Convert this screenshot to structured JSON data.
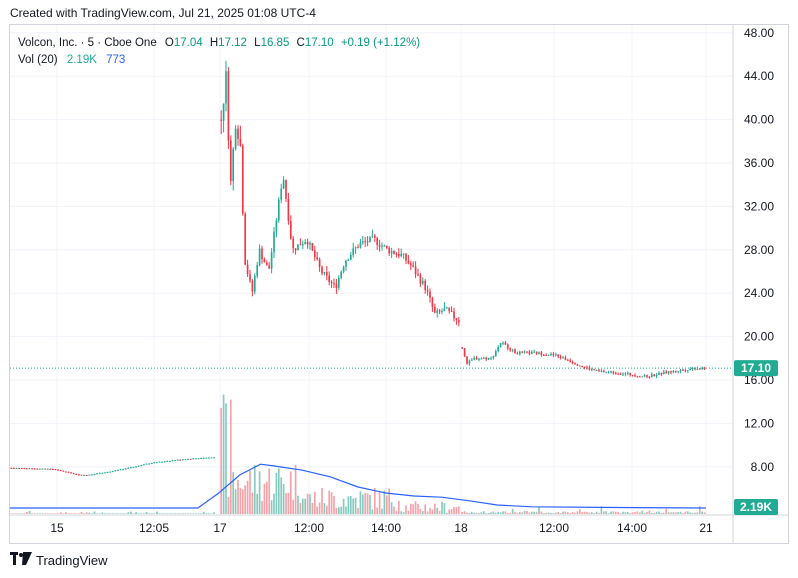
{
  "caption": "Created with TradingView.com, Jul 21, 2025 01:08 UTC-4",
  "footer": {
    "brand": "TradingView",
    "logo_icon": "tradingview-logo-icon"
  },
  "legend": {
    "symbol": "Volcon, Inc. · 5 · Cboe One",
    "o_label": "O",
    "o_value": "17.04",
    "h_label": "H",
    "h_value": "17.12",
    "l_label": "L",
    "l_value": "16.85",
    "c_label": "C",
    "c_value": "17.10",
    "change": "+0.19 (+1.12%)",
    "vol_label": "Vol (20)",
    "vol_value": "2.19K",
    "vol_ma_value": "773"
  },
  "colors": {
    "up": "#22ab94",
    "down": "#f23645",
    "vol_up": "#86cbbf",
    "vol_down": "#f5a3a9",
    "ma": "#2962ff"
  },
  "chart_data": {
    "type": "candlestick",
    "interval_minutes": 5,
    "price_axis": {
      "ticks": [
        16,
        20,
        24,
        28,
        32,
        36,
        40,
        44,
        48
      ],
      "range": [
        12,
        48
      ],
      "last_price_label": "17.10"
    },
    "volume_axis": {
      "last_volume_label": "2.19K",
      "extra_ticks": [
        8,
        12
      ]
    },
    "x_ticks": [
      "15",
      "12:05",
      "17",
      "12:00",
      "14:00",
      "18",
      "12:00",
      "14:00",
      "21"
    ],
    "sessions": [
      {
        "date": "Jul 15",
        "price_path": [
          [
            0,
            7.9
          ],
          [
            0.2,
            7.8
          ],
          [
            0.35,
            7.2
          ],
          [
            0.5,
            7.6
          ],
          [
            0.7,
            8.4
          ],
          [
            0.85,
            8.7
          ],
          [
            1,
            8.9
          ]
        ]
      },
      {
        "date": "Jul 17",
        "price_path": [
          [
            0,
            40
          ],
          [
            0.02,
            44
          ],
          [
            0.04,
            34
          ],
          [
            0.06,
            40
          ],
          [
            0.08,
            38
          ],
          [
            0.1,
            27
          ],
          [
            0.13,
            24
          ],
          [
            0.16,
            28
          ],
          [
            0.2,
            26
          ],
          [
            0.26,
            35
          ],
          [
            0.3,
            28
          ],
          [
            0.36,
            29
          ],
          [
            0.42,
            26
          ],
          [
            0.48,
            24.5
          ],
          [
            0.52,
            27
          ],
          [
            0.58,
            28.5
          ],
          [
            0.64,
            29
          ],
          [
            0.7,
            28
          ],
          [
            0.76,
            27.5
          ],
          [
            0.8,
            26.5
          ],
          [
            0.86,
            24.5
          ],
          [
            0.9,
            22
          ],
          [
            0.94,
            22.5
          ],
          [
            1,
            21.5
          ]
        ]
      },
      {
        "date": "Jul 18",
        "price_path": [
          [
            0,
            19
          ],
          [
            0.02,
            17.5
          ],
          [
            0.05,
            18
          ],
          [
            0.12,
            18
          ],
          [
            0.16,
            19.5
          ],
          [
            0.22,
            18.5
          ],
          [
            0.3,
            18.5
          ],
          [
            0.38,
            18.3
          ],
          [
            0.44,
            17.8
          ],
          [
            0.5,
            17.2
          ],
          [
            0.56,
            16.8
          ],
          [
            0.62,
            16.7
          ],
          [
            0.7,
            16.5
          ],
          [
            0.76,
            16.3
          ],
          [
            0.82,
            16.6
          ],
          [
            0.9,
            16.9
          ],
          [
            0.96,
            17.1
          ],
          [
            1,
            17.1
          ]
        ]
      }
    ],
    "volume_ma_path": [
      [
        0,
        1.0
      ],
      [
        0.05,
        1.0
      ],
      [
        0.1,
        1.0
      ],
      [
        0.2,
        1.0
      ],
      [
        0.27,
        1.0
      ],
      [
        0.3,
        3.5
      ],
      [
        0.33,
        6.5
      ],
      [
        0.36,
        8.3
      ],
      [
        0.38,
        8.0
      ],
      [
        0.42,
        7.3
      ],
      [
        0.46,
        6.2
      ],
      [
        0.5,
        4.5
      ],
      [
        0.54,
        3.5
      ],
      [
        0.58,
        3.0
      ],
      [
        0.62,
        2.8
      ],
      [
        0.66,
        2.2
      ],
      [
        0.7,
        1.5
      ],
      [
        0.75,
        1.2
      ],
      [
        0.85,
        1.1
      ],
      [
        1,
        1.0
      ]
    ]
  }
}
